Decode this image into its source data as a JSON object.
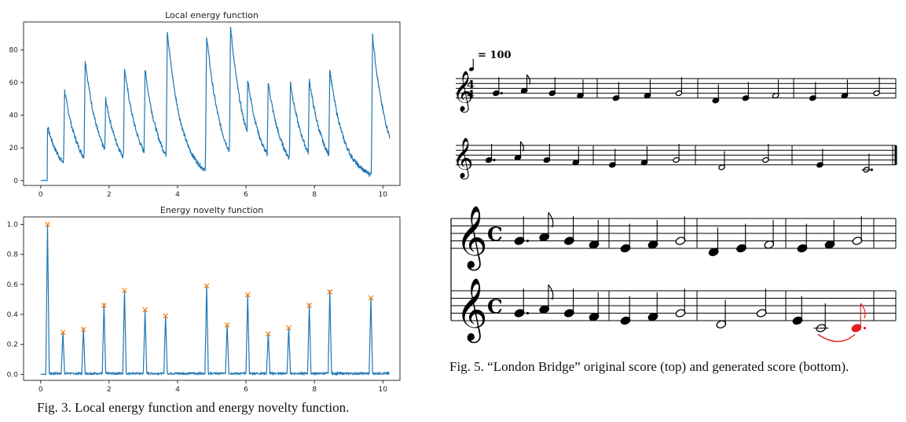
{
  "chart_data": [
    {
      "type": "line",
      "title": "Local energy function",
      "xlabel": "",
      "ylabel": "",
      "xlim": [
        -0.5,
        10.5
      ],
      "ylim": [
        -3,
        97
      ],
      "x_ticks": [
        0,
        2,
        4,
        6,
        8,
        10
      ],
      "y_ticks": [
        0,
        20,
        40,
        60,
        80
      ],
      "color": "#1f77b4",
      "series": [
        {
          "peaks": [
            {
              "x": 0.2,
              "y": 33
            },
            {
              "x": 0.7,
              "y": 55
            },
            {
              "x": 1.3,
              "y": 74
            },
            {
              "x": 1.9,
              "y": 50
            },
            {
              "x": 2.45,
              "y": 69
            },
            {
              "x": 3.05,
              "y": 68
            },
            {
              "x": 3.7,
              "y": 92
            },
            {
              "x": 4.85,
              "y": 89
            },
            {
              "x": 5.55,
              "y": 94
            },
            {
              "x": 6.05,
              "y": 62
            },
            {
              "x": 6.65,
              "y": 60
            },
            {
              "x": 7.3,
              "y": 60
            },
            {
              "x": 7.85,
              "y": 62
            },
            {
              "x": 8.45,
              "y": 68
            },
            {
              "x": 9.7,
              "y": 89
            }
          ]
        }
      ]
    },
    {
      "type": "line",
      "title": "Energy novelty function",
      "xlabel": "",
      "ylabel": "",
      "xlim": [
        -0.5,
        10.5
      ],
      "ylim": [
        -0.04,
        1.05
      ],
      "x_ticks": [
        0,
        2,
        4,
        6,
        8,
        10
      ],
      "y_ticks": [
        "0.0",
        "0.2",
        "0.4",
        "0.6",
        "0.8",
        "1.0"
      ],
      "line_color": "#1f77b4",
      "marker_color": "#ff7f0e",
      "series": [
        {
          "peaks": [
            {
              "x": 0.2,
              "y": 1.0
            },
            {
              "x": 0.65,
              "y": 0.28
            },
            {
              "x": 1.25,
              "y": 0.3
            },
            {
              "x": 1.85,
              "y": 0.46
            },
            {
              "x": 2.45,
              "y": 0.56
            },
            {
              "x": 3.05,
              "y": 0.43
            },
            {
              "x": 3.65,
              "y": 0.39
            },
            {
              "x": 4.85,
              "y": 0.59
            },
            {
              "x": 5.45,
              "y": 0.33
            },
            {
              "x": 6.05,
              "y": 0.53
            },
            {
              "x": 6.65,
              "y": 0.27
            },
            {
              "x": 7.25,
              "y": 0.31
            },
            {
              "x": 7.85,
              "y": 0.46
            },
            {
              "x": 8.45,
              "y": 0.55
            },
            {
              "x": 9.65,
              "y": 0.51
            }
          ]
        }
      ]
    }
  ],
  "figures": {
    "fig3_caption": "Fig. 3.  Local energy function and energy novelty function.",
    "fig5_caption": "Fig. 5.  “London Bridge” original score (top) and generated score (bottom).",
    "tempo_text": "= 100",
    "time_signature": "4/4",
    "common_time": "C",
    "highlight_color": "#e02020"
  }
}
